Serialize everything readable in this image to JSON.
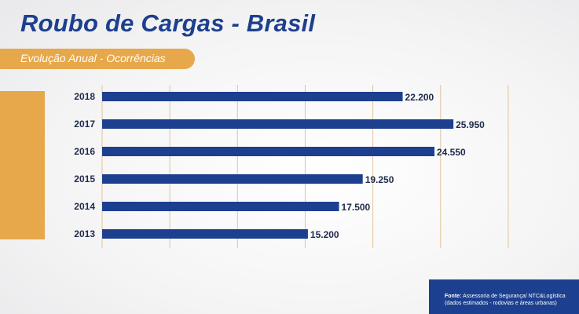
{
  "header": {
    "title": "Roubo de Cargas - Brasil",
    "subtitle": "Evolução Anual - Ocorrências"
  },
  "chart_data": {
    "type": "bar",
    "orientation": "horizontal",
    "title": "Roubo de Cargas - Brasil",
    "subtitle": "Evolução Anual - Ocorrências",
    "categories": [
      "2018",
      "2017",
      "2016",
      "2015",
      "2014",
      "2013"
    ],
    "values": [
      22200,
      25950,
      24550,
      19250,
      17500,
      15200
    ],
    "value_labels": [
      "22.200",
      "25.950",
      "24.550",
      "19.250",
      "17.500",
      "15.200"
    ],
    "xlim": [
      0,
      30000
    ],
    "xlabel": "",
    "ylabel": "",
    "grid": true,
    "bar_color": "#1d3f8f"
  },
  "source": {
    "label": "Fonte:",
    "line1": "Assessoria de Segurança/ NTC&Logística",
    "line2": "(dados estimados - rodovias e áreas urbanas)"
  },
  "colors": {
    "primary": "#1d3f8f",
    "accent": "#e6a84a"
  }
}
